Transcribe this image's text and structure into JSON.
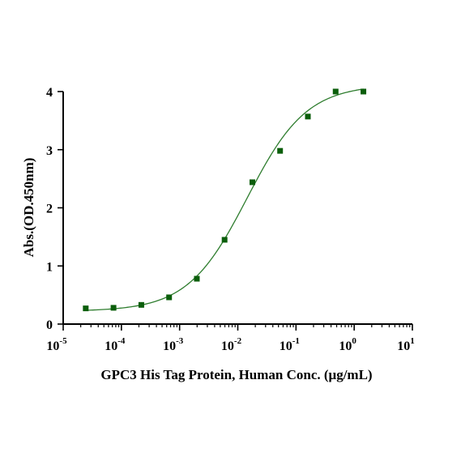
{
  "chart_data": {
    "type": "scatter",
    "title": "",
    "xlabel": "GPC3 His Tag Protein, Human Conc. (μg/mL)",
    "ylabel": "Abs.(OD.450nm)",
    "xscale": "log",
    "xlim": [
      1e-05,
      10
    ],
    "ylim": [
      0,
      4
    ],
    "grid": false,
    "legend": "none",
    "x_ticks": [
      {
        "base": "10",
        "exp": "-5",
        "value": 1e-05
      },
      {
        "base": "10",
        "exp": "-4",
        "value": 0.0001
      },
      {
        "base": "10",
        "exp": "-3",
        "value": 0.001
      },
      {
        "base": "10",
        "exp": "-2",
        "value": 0.01
      },
      {
        "base": "10",
        "exp": "-1",
        "value": 0.1
      },
      {
        "base": "10",
        "exp": "0",
        "value": 1
      },
      {
        "base": "10",
        "exp": "1",
        "value": 10
      }
    ],
    "y_ticks": [
      "0",
      "1",
      "2",
      "3",
      "4"
    ],
    "series": [
      {
        "marker_color": "#0b5e0b",
        "line_color": "#2e7d2e",
        "points": [
          {
            "x": 2.44e-05,
            "y": 0.27
          },
          {
            "x": 7.32e-05,
            "y": 0.28
          },
          {
            "x": 0.00022,
            "y": 0.33
          },
          {
            "x": 0.00066,
            "y": 0.46
          },
          {
            "x": 0.00198,
            "y": 0.78
          },
          {
            "x": 0.00593,
            "y": 1.45
          },
          {
            "x": 0.0178,
            "y": 2.44
          },
          {
            "x": 0.0533,
            "y": 2.98
          },
          {
            "x": 0.16,
            "y": 3.57
          },
          {
            "x": 0.48,
            "y": 4.0
          },
          {
            "x": 1.44,
            "y": 4.0
          }
        ],
        "fit": {
          "model": "4PL",
          "bottom": 0.22,
          "top": 4.12,
          "ec50": 0.0145,
          "hill": 0.85
        }
      }
    ]
  }
}
